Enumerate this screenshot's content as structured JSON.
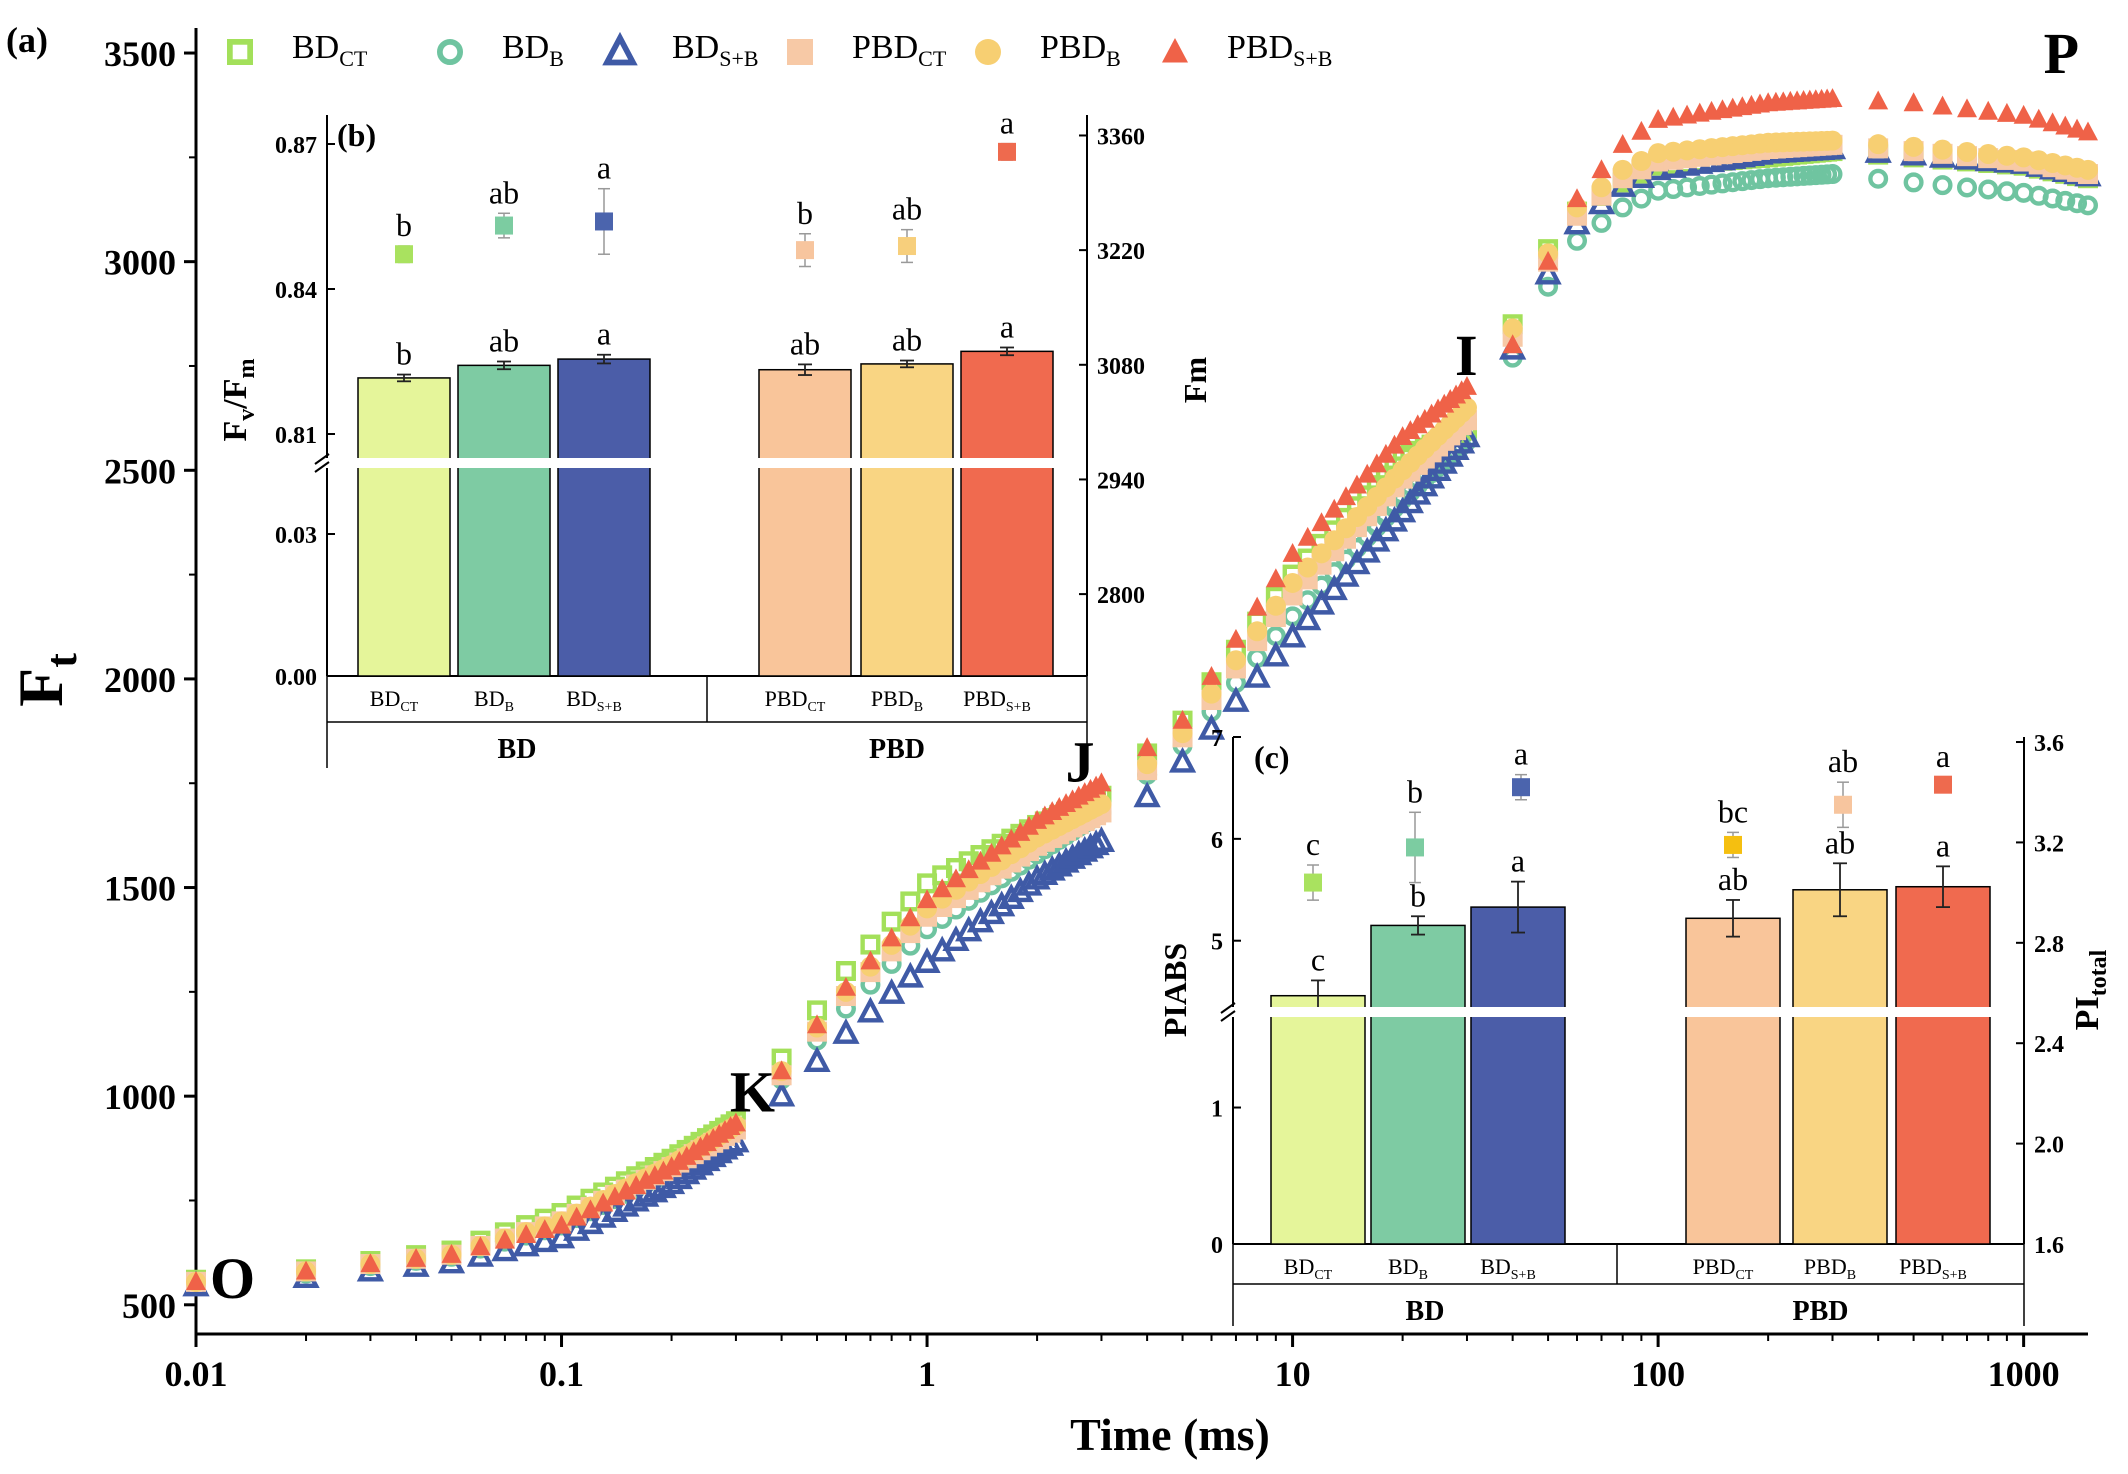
{
  "chart_data": [
    {
      "panel": "(a)",
      "type": "scatter",
      "xlabel": "Time (ms)",
      "ylabel_main": "F",
      "ylabel_sub": "t",
      "xscale": "log",
      "xlim": [
        0.01,
        1500
      ],
      "ylim": [
        430,
        3560
      ],
      "xticks": [
        0.01,
        0.1,
        1,
        10,
        100,
        1000
      ],
      "xtick_labels": [
        "0.01",
        "0.1",
        "1",
        "10",
        "100",
        "1000"
      ],
      "yticks": [
        500,
        1000,
        1500,
        2000,
        2500,
        3000,
        3500
      ],
      "ytick_labels": [
        "500",
        "1000",
        "1500",
        "2000",
        "2500",
        "3000",
        "3500"
      ],
      "legend": "top",
      "annotations": [
        {
          "text": "O",
          "x": 0.01,
          "y": 560
        },
        {
          "text": "K",
          "x": 0.3,
          "y": 930
        },
        {
          "text": "J",
          "x": 3,
          "y": 1720
        },
        {
          "text": "I",
          "x": 30,
          "y": 2680
        },
        {
          "text": "P",
          "x": 1000,
          "y": 3380
        }
      ],
      "series": [
        {
          "key": "BDCT",
          "name_main": "BD",
          "name_sub": "CT",
          "marker": "open-square",
          "color": "#a3e05a",
          "anchors": [
            [
              0.01,
              560
            ],
            [
              0.02,
              585
            ],
            [
              0.05,
              630
            ],
            [
              0.1,
              720
            ],
            [
              0.2,
              850
            ],
            [
              0.3,
              940
            ],
            [
              0.4,
              1090
            ],
            [
              0.6,
              1300
            ],
            [
              1,
              1510
            ],
            [
              2,
              1650
            ],
            [
              3,
              1720
            ],
            [
              5,
              1900
            ],
            [
              10,
              2250
            ],
            [
              20,
              2530
            ],
            [
              30,
              2600
            ],
            [
              40,
              2850
            ],
            [
              50,
              3030
            ],
            [
              60,
              3120
            ],
            [
              80,
              3190
            ],
            [
              100,
              3230
            ],
            [
              200,
              3250
            ],
            [
              300,
              3265
            ],
            [
              500,
              3250
            ],
            [
              1000,
              3230
            ],
            [
              1500,
              3200
            ]
          ]
        },
        {
          "key": "BDB",
          "name_main": "BD",
          "name_sub": "B",
          "marker": "open-circle",
          "color": "#6fc4a0",
          "anchors": [
            [
              0.01,
              555
            ],
            [
              0.02,
              575
            ],
            [
              0.05,
              615
            ],
            [
              0.1,
              690
            ],
            [
              0.2,
              820
            ],
            [
              0.3,
              920
            ],
            [
              0.4,
              1040
            ],
            [
              0.6,
              1210
            ],
            [
              1,
              1400
            ],
            [
              2,
              1580
            ],
            [
              3,
              1680
            ],
            [
              5,
              1840
            ],
            [
              10,
              2150
            ],
            [
              20,
              2430
            ],
            [
              30,
              2570
            ],
            [
              40,
              2770
            ],
            [
              50,
              2940
            ],
            [
              60,
              3050
            ],
            [
              80,
              3130
            ],
            [
              100,
              3170
            ],
            [
              200,
              3200
            ],
            [
              300,
              3210
            ],
            [
              500,
              3190
            ],
            [
              1000,
              3165
            ],
            [
              1500,
              3135
            ]
          ]
        },
        {
          "key": "BDSB",
          "name_main": "BD",
          "name_sub": "S+B",
          "marker": "open-triangle",
          "color": "#3f5aa6",
          "anchors": [
            [
              0.01,
              545
            ],
            [
              0.02,
              565
            ],
            [
              0.05,
              600
            ],
            [
              0.1,
              660
            ],
            [
              0.2,
              790
            ],
            [
              0.3,
              890
            ],
            [
              0.4,
              1000
            ],
            [
              0.6,
              1150
            ],
            [
              1,
              1320
            ],
            [
              2,
              1520
            ],
            [
              3,
              1610
            ],
            [
              5,
              1800
            ],
            [
              10,
              2100
            ],
            [
              20,
              2400
            ],
            [
              30,
              2580
            ],
            [
              40,
              2790
            ],
            [
              50,
              2970
            ],
            [
              60,
              3090
            ],
            [
              80,
              3180
            ],
            [
              100,
              3220
            ],
            [
              200,
              3260
            ],
            [
              300,
              3270
            ],
            [
              500,
              3255
            ],
            [
              1000,
              3235
            ],
            [
              1500,
              3205
            ]
          ]
        },
        {
          "key": "PBDCT",
          "name_main": "PBD",
          "name_sub": "CT",
          "marker": "filled-square",
          "color": "#f7c9a6",
          "anchors": [
            [
              0.01,
              555
            ],
            [
              0.02,
              580
            ],
            [
              0.05,
              620
            ],
            [
              0.1,
              700
            ],
            [
              0.2,
              830
            ],
            [
              0.3,
              920
            ],
            [
              0.4,
              1050
            ],
            [
              0.6,
              1240
            ],
            [
              1,
              1430
            ],
            [
              2,
              1600
            ],
            [
              3,
              1680
            ],
            [
              5,
              1860
            ],
            [
              10,
              2200
            ],
            [
              20,
              2480
            ],
            [
              30,
              2620
            ],
            [
              40,
              2820
            ],
            [
              50,
              3000
            ],
            [
              60,
              3110
            ],
            [
              80,
              3200
            ],
            [
              100,
              3240
            ],
            [
              200,
              3270
            ],
            [
              300,
              3280
            ],
            [
              500,
              3265
            ],
            [
              1000,
              3240
            ],
            [
              1500,
              3210
            ]
          ]
        },
        {
          "key": "PBDB",
          "name_main": "PBD",
          "name_sub": "B",
          "marker": "filled-circle",
          "color": "#f7cf72",
          "anchors": [
            [
              0.01,
              555
            ],
            [
              0.02,
              580
            ],
            [
              0.05,
              620
            ],
            [
              0.1,
              700
            ],
            [
              0.2,
              835
            ],
            [
              0.3,
              930
            ],
            [
              0.4,
              1060
            ],
            [
              0.6,
              1250
            ],
            [
              1,
              1450
            ],
            [
              2,
              1620
            ],
            [
              3,
              1700
            ],
            [
              5,
              1870
            ],
            [
              10,
              2230
            ],
            [
              20,
              2500
            ],
            [
              30,
              2650
            ],
            [
              40,
              2840
            ],
            [
              50,
              3020
            ],
            [
              60,
              3130
            ],
            [
              80,
              3220
            ],
            [
              100,
              3260
            ],
            [
              200,
              3285
            ],
            [
              300,
              3290
            ],
            [
              500,
              3275
            ],
            [
              1000,
              3250
            ],
            [
              1500,
              3220
            ]
          ]
        },
        {
          "key": "PBDSB",
          "name_main": "PBD",
          "name_sub": "S+B",
          "marker": "filled-triangle",
          "color": "#ef6248",
          "anchors": [
            [
              0.01,
              555
            ],
            [
              0.02,
              580
            ],
            [
              0.05,
              620
            ],
            [
              0.1,
              690
            ],
            [
              0.2,
              830
            ],
            [
              0.3,
              935
            ],
            [
              0.4,
              1060
            ],
            [
              0.6,
              1260
            ],
            [
              1,
              1470
            ],
            [
              2,
              1660
            ],
            [
              3,
              1750
            ],
            [
              5,
              1900
            ],
            [
              10,
              2300
            ],
            [
              20,
              2580
            ],
            [
              30,
              2700
            ],
            [
              40,
              2800
            ],
            [
              50,
              3000
            ],
            [
              60,
              3150
            ],
            [
              80,
              3280
            ],
            [
              100,
              3340
            ],
            [
              200,
              3380
            ],
            [
              300,
              3390
            ],
            [
              500,
              3380
            ],
            [
              1000,
              3350
            ],
            [
              1500,
              3310
            ]
          ]
        }
      ]
    },
    {
      "panel": "(b)",
      "type": "bar",
      "groups": [
        "BD",
        "PBD"
      ],
      "categories_main": [
        "BD",
        "BD",
        "BD",
        "PBD",
        "PBD",
        "PBD"
      ],
      "categories_sub": [
        "CT",
        "B",
        "S+B",
        "CT",
        "B",
        "S+B"
      ],
      "ylabel_left_main": "F",
      "ylabel_left_sub1": "v",
      "ylabel_left_mid": "/F",
      "ylabel_left_sub2": "m",
      "ylabel_right": "Fm",
      "left_axis_lower": {
        "ylim": [
          0,
          0.045
        ],
        "ticks": [
          0.0,
          0.03
        ],
        "tick_labels": [
          "0.00",
          "0.03"
        ]
      },
      "left_axis_upper": {
        "ylim": [
          0.804,
          0.876
        ],
        "ticks": [
          0.81,
          0.84,
          0.87
        ],
        "tick_labels": [
          "0.81",
          "0.84",
          "0.87"
        ]
      },
      "right_axis": {
        "ylim": [
          2700,
          3385
        ],
        "ticks": [
          2800,
          2940,
          3080,
          3220,
          3360
        ],
        "tick_labels": [
          "2800",
          "2940",
          "3080",
          "3220",
          "3360"
        ]
      },
      "fv_fm": {
        "values": [
          0.8216,
          0.8242,
          0.8255,
          0.8233,
          0.8245,
          0.8271
        ],
        "errors": [
          0.0007,
          0.0008,
          0.0009,
          0.0011,
          0.0007,
          0.0008
        ],
        "letters": [
          "b",
          "ab",
          "a",
          "ab",
          "ab",
          "a"
        ]
      },
      "fm": {
        "values": [
          3215,
          3250,
          3255,
          3220,
          3225,
          3340
        ],
        "errors": [
          10,
          15,
          40,
          20,
          20,
          10
        ],
        "letters": [
          "b",
          "ab",
          "a",
          "b",
          "ab",
          "a"
        ]
      },
      "bar_colors": [
        "#e5f59a",
        "#7ecba3",
        "#4b5da8",
        "#f9c59a",
        "#f9d583",
        "#f06a4f"
      ],
      "fm_colors": [
        "#a9e25f",
        "#7ccca1",
        "#4b64ad",
        "#f7c59e",
        "#f7cf7c",
        "#ee6a4e"
      ]
    },
    {
      "panel": "(c)",
      "type": "bar",
      "groups": [
        "BD",
        "PBD"
      ],
      "categories_main": [
        "BD",
        "BD",
        "BD",
        "PBD",
        "PBD",
        "PBD"
      ],
      "categories_sub": [
        "CT",
        "B",
        "S+B",
        "CT",
        "B",
        "S+B"
      ],
      "ylabel_left": "PIABS",
      "ylabel_right_main": "PI",
      "ylabel_right_sub": "total",
      "left_axis_lower": {
        "ylim": [
          0,
          1.7
        ],
        "ticks": [
          0,
          1
        ],
        "tick_labels": [
          "0",
          "1"
        ]
      },
      "left_axis_upper": {
        "ylim": [
          4.3,
          7.0
        ],
        "ticks": [
          5,
          6,
          7
        ],
        "tick_labels": [
          "5",
          "6",
          "7"
        ]
      },
      "right_axis": {
        "ylim": [
          1.6,
          3.62
        ],
        "ticks": [
          1.6,
          2.0,
          2.4,
          2.8,
          3.2,
          3.6
        ],
        "tick_labels": [
          "1.6",
          "2.0",
          "2.4",
          "2.8",
          "3.2",
          "3.6"
        ]
      },
      "piabs": {
        "values": [
          4.46,
          5.15,
          5.33,
          5.22,
          5.5,
          5.53
        ],
        "errors": [
          0.15,
          0.09,
          0.25,
          0.18,
          0.26,
          0.2
        ],
        "letters": [
          "c",
          "b",
          "a",
          "ab",
          "ab",
          "a"
        ]
      },
      "pitotal": {
        "values": [
          3.04,
          3.18,
          3.42,
          3.19,
          3.35,
          3.43
        ],
        "errors": [
          0.07,
          0.14,
          0.05,
          0.05,
          0.09,
          0.03
        ],
        "letters": [
          "c",
          "b",
          "a",
          "bc",
          "ab",
          "a"
        ]
      },
      "bar_colors": [
        "#e5f59a",
        "#7ecba3",
        "#4b5da8",
        "#f9c59a",
        "#f9d583",
        "#f06a4f"
      ],
      "pi_colors": [
        "#a9e25f",
        "#7ccca1",
        "#4b64ad",
        "#f5bf10",
        "#f7c59e",
        "#ee6a4e"
      ]
    }
  ]
}
